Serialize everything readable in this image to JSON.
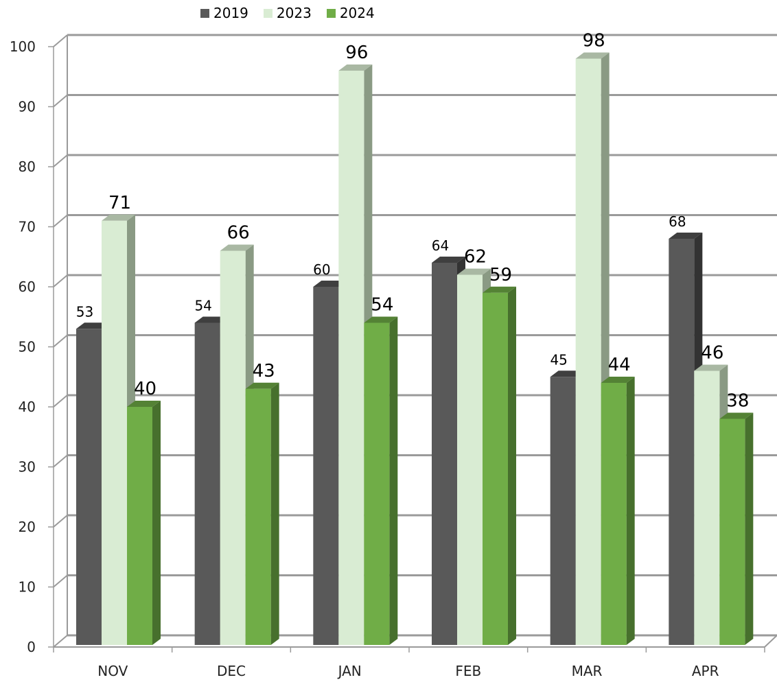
{
  "chart_data": {
    "type": "bar",
    "title": "",
    "xlabel": "",
    "ylabel": "",
    "categories": [
      "NOV",
      "DEC",
      "JAN",
      "FEB",
      "MAR",
      "APR"
    ],
    "series": [
      {
        "name": "2019",
        "values": [
          53,
          54,
          60,
          64,
          45,
          68
        ],
        "color": "#595959",
        "side": "#333333",
        "top": "#3f3f3f"
      },
      {
        "name": "2023",
        "values": [
          71,
          66,
          96,
          62,
          98,
          46
        ],
        "color": "#d9ecd3",
        "side": "#8a9a84",
        "top": "#a9b8a3"
      },
      {
        "name": "2024",
        "values": [
          40,
          43,
          54,
          59,
          44,
          38
        ],
        "color": "#70ad47",
        "side": "#47702d",
        "top": "#548235"
      }
    ],
    "ylim": [
      0,
      100
    ],
    "yticks": [
      0,
      10,
      20,
      30,
      40,
      50,
      60,
      70,
      80,
      90,
      100
    ],
    "grid": true,
    "legend_position": "top-left",
    "style": "3d-clustered-column"
  }
}
